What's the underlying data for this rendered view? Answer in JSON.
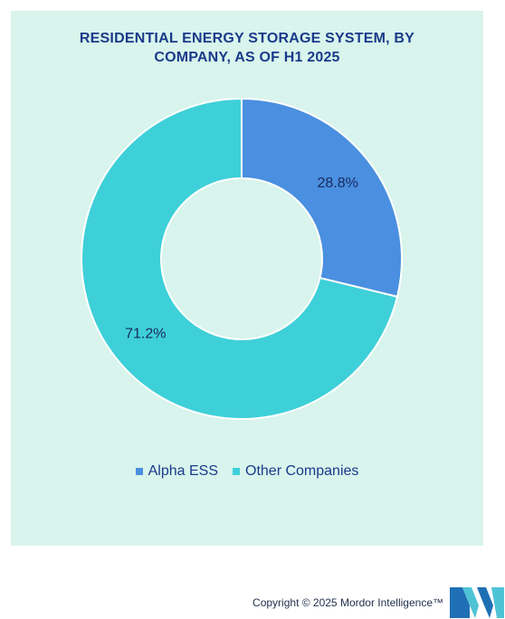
{
  "title_line1": "RESIDENTIAL ENERGY STORAGE SYSTEM, BY",
  "title_line2": "COMPANY, AS OF H1 2025",
  "chart_data": {
    "type": "pie",
    "donut": true,
    "title": "RESIDENTIAL ENERGY STORAGE SYSTEM, BY COMPANY, AS OF H1 2025",
    "categories": [
      "Alpha ESS",
      "Other Companies"
    ],
    "values": [
      28.8,
      71.2
    ],
    "labels": [
      "28.8%",
      "71.2%"
    ],
    "colors": [
      "#4a8fe0",
      "#3ed0d8"
    ],
    "legend_position": "bottom"
  },
  "footer": {
    "copyright": "Copyright © 2025 Mordor Intelligence™"
  },
  "logo_colors": [
    "#1f6fb5",
    "#4fc3d6"
  ]
}
